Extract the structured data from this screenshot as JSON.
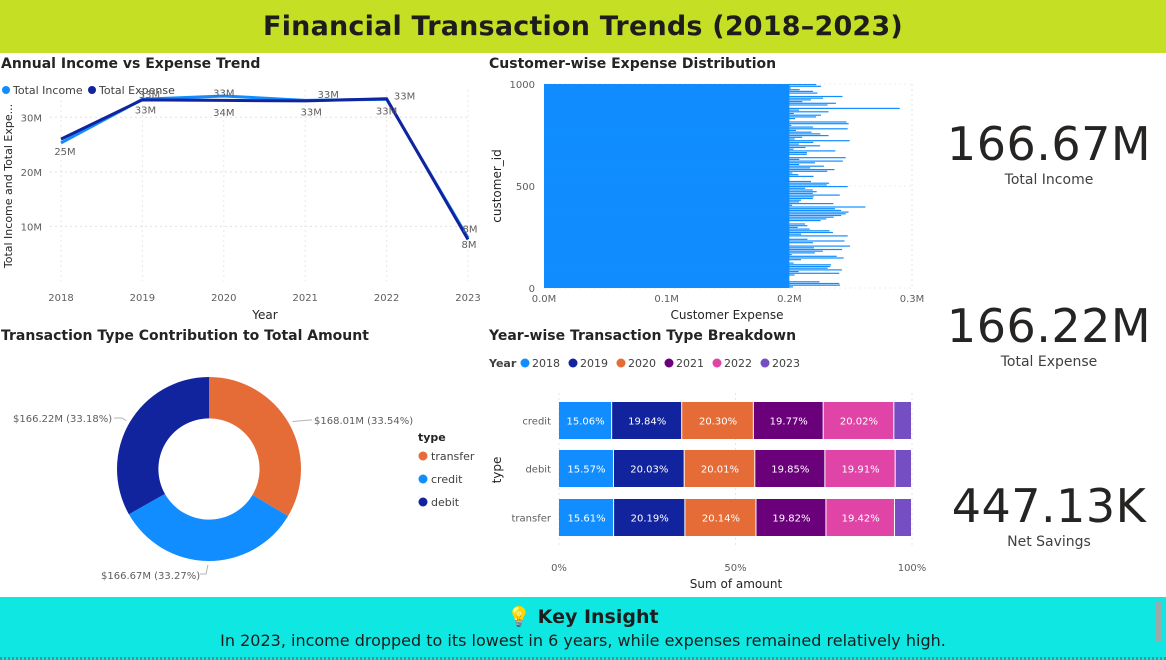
{
  "header": {
    "title": "Financial Transaction Trends (2018–2023)"
  },
  "colors": {
    "banner": "#c5df24",
    "insight_bg": "#0fe8e2",
    "income": "#118dff",
    "expense": "#12239e",
    "transfer": "#e66c37",
    "credit": "#118dff",
    "debit": "#12239e",
    "y2018": "#118dff",
    "y2019": "#12239e",
    "y2020": "#e66c37",
    "y2021": "#6b007b",
    "y2022": "#e044a7",
    "y2023": "#744ec2"
  },
  "line_chart": {
    "title": "Annual Income vs Expense Trend",
    "legend": [
      "Total Income",
      "Total Expense"
    ],
    "xlabel": "Year",
    "ylabel": "Total Income and Total Expe...",
    "y_ticks": [
      "10M",
      "20M",
      "30M"
    ],
    "income_labels": [
      "25M",
      "33M",
      "34M",
      "33M",
      "33M",
      "8M"
    ],
    "expense_labels": [
      "",
      "33M",
      "33M",
      "33M",
      "33M",
      "8M"
    ]
  },
  "bar_chart": {
    "title": "Customer-wise Expense Distribution",
    "xlabel": "Customer Expense",
    "ylabel": "customer_id",
    "x_ticks": [
      "0.0M",
      "0.1M",
      "0.2M",
      "0.3M"
    ],
    "y_ticks": [
      "0",
      "500",
      "1000"
    ]
  },
  "donut_chart": {
    "title": "Transaction Type Contribution to Total Amount",
    "legend_title": "type",
    "legend": [
      "transfer",
      "credit",
      "debit"
    ],
    "slice_labels": [
      "$168.01M (33.54%)",
      "$166.67M (33.27%)",
      "$166.22M (33.18%)"
    ]
  },
  "stacked_chart": {
    "title": "Year-wise Transaction Type Breakdown",
    "legend_title": "Year",
    "legend": [
      "2018",
      "2019",
      "2020",
      "2021",
      "2022",
      "2023"
    ],
    "ylabel": "type",
    "xlabel": "Sum of amount",
    "x_ticks": [
      "0%",
      "50%",
      "100%"
    ]
  },
  "kpis": [
    {
      "value": "166.67M",
      "label": "Total Income"
    },
    {
      "value": "166.22M",
      "label": "Total Expense"
    },
    {
      "value": "447.13K",
      "label": "Net Savings"
    }
  ],
  "insight": {
    "icon": "lightbulb-icon",
    "title": "💡 Key Insight",
    "text": "In 2023, income dropped to its lowest in 6 years, while expenses remained relatively high."
  },
  "chart_data": [
    {
      "type": "line",
      "x": [
        "2018",
        "2019",
        "2020",
        "2021",
        "2022",
        "2023"
      ],
      "series": [
        {
          "name": "Total Income",
          "values": [
            25.3,
            33.3,
            33.9,
            33.1,
            33.3,
            7.9
          ]
        },
        {
          "name": "Total Expense",
          "values": [
            26.0,
            33.2,
            33.1,
            33.0,
            33.4,
            7.6
          ]
        }
      ],
      "ylim": [
        0,
        35
      ],
      "legend_position": "top-left"
    },
    {
      "type": "bar",
      "orientation": "horizontal",
      "categories_range": [
        0,
        1000
      ],
      "xlim": [
        0,
        0.3
      ],
      "typical_value_range": [
        0.2,
        0.25
      ],
      "max_value": 0.29,
      "values_sample": [
        0.21,
        0.23,
        0.22,
        0.25,
        0.2,
        0.24,
        0.22,
        0.21,
        0.23,
        0.24,
        0.22,
        0.2,
        0.23,
        0.29,
        0.21,
        0.22,
        0.26,
        0.23
      ]
    },
    {
      "type": "pie",
      "hole": 0.55,
      "categories": [
        "transfer",
        "credit",
        "debit"
      ],
      "values": [
        168.01,
        166.67,
        166.22
      ],
      "percent": [
        33.54,
        33.27,
        33.18
      ]
    },
    {
      "type": "bar",
      "orientation": "horizontal",
      "stacked_percent": true,
      "categories": [
        "credit",
        "debit",
        "transfer"
      ],
      "series": [
        {
          "name": "2018",
          "values": [
            15.06,
            15.57,
            15.61
          ]
        },
        {
          "name": "2019",
          "values": [
            19.84,
            20.03,
            20.19
          ]
        },
        {
          "name": "2020",
          "values": [
            20.3,
            20.01,
            20.14
          ]
        },
        {
          "name": "2021",
          "values": [
            19.77,
            19.85,
            19.82
          ]
        },
        {
          "name": "2022",
          "values": [
            20.02,
            19.91,
            19.42
          ]
        },
        {
          "name": "2023",
          "values": [
            5.01,
            4.63,
            4.82
          ]
        }
      ],
      "xlim": [
        0,
        100
      ]
    }
  ]
}
